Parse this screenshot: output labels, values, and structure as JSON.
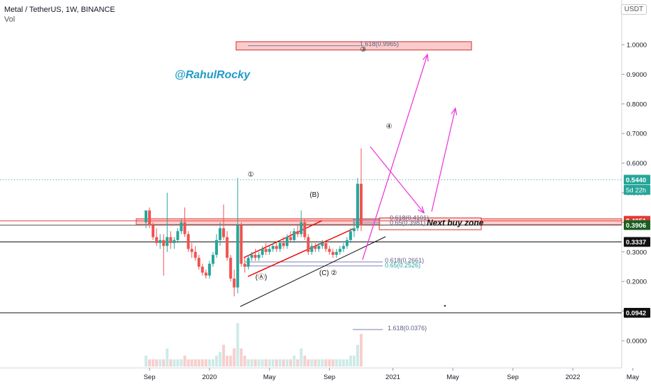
{
  "header": {
    "title": "Metal / TetherUS, 1W, BINANCE",
    "vol_label": "Vol"
  },
  "currency_badge": "USDT",
  "watermark": "@RahulRocky",
  "colors": {
    "up": "#26a69a",
    "down": "#ef5350",
    "magenta": "#ee3bde",
    "volume_up": "#cdebe8",
    "volume_down": "#f6cfce",
    "text": "#131722"
  },
  "chart_data": {
    "type": "candlestick",
    "symbol": "Metal / TetherUS",
    "interval": "1W",
    "exchange": "BINANCE",
    "ylim": [
      -0.08,
      1.1
    ],
    "y_ticks": [
      0.0,
      0.1,
      0.2,
      0.3,
      0.4,
      0.5,
      0.6,
      0.7,
      0.8,
      0.9,
      1.0
    ],
    "y_tick_labels": [
      "0.0000",
      "0.1000",
      "0.2000",
      "0.3000",
      "0.4000",
      "0.5000",
      "0.6000",
      "0.7000",
      "0.8000",
      "0.9000",
      "1.0000"
    ],
    "x_ticks": [
      "Sep",
      "2020",
      "May",
      "Sep",
      "2021",
      "May",
      "Sep",
      "2022",
      "May"
    ],
    "x_tick_index": [
      1,
      18,
      35,
      52,
      70,
      87,
      104,
      121,
      138
    ],
    "candles": [
      {
        "o": 0.4,
        "h": 0.44,
        "l": 0.38,
        "c": 0.44
      },
      {
        "o": 0.44,
        "h": 0.45,
        "l": 0.38,
        "c": 0.39
      },
      {
        "o": 0.39,
        "h": 0.4,
        "l": 0.34,
        "c": 0.35
      },
      {
        "o": 0.35,
        "h": 0.38,
        "l": 0.32,
        "c": 0.33
      },
      {
        "o": 0.33,
        "h": 0.36,
        "l": 0.31,
        "c": 0.34
      },
      {
        "o": 0.34,
        "h": 0.36,
        "l": 0.22,
        "c": 0.32
      },
      {
        "o": 0.32,
        "h": 0.5,
        "l": 0.3,
        "c": 0.35
      },
      {
        "o": 0.35,
        "h": 0.37,
        "l": 0.31,
        "c": 0.33
      },
      {
        "o": 0.33,
        "h": 0.35,
        "l": 0.31,
        "c": 0.34
      },
      {
        "o": 0.34,
        "h": 0.38,
        "l": 0.33,
        "c": 0.37
      },
      {
        "o": 0.37,
        "h": 0.41,
        "l": 0.36,
        "c": 0.4
      },
      {
        "o": 0.4,
        "h": 0.45,
        "l": 0.35,
        "c": 0.36
      },
      {
        "o": 0.36,
        "h": 0.37,
        "l": 0.3,
        "c": 0.31
      },
      {
        "o": 0.31,
        "h": 0.33,
        "l": 0.28,
        "c": 0.3
      },
      {
        "o": 0.3,
        "h": 0.32,
        "l": 0.27,
        "c": 0.28
      },
      {
        "o": 0.28,
        "h": 0.29,
        "l": 0.24,
        "c": 0.25
      },
      {
        "o": 0.25,
        "h": 0.26,
        "l": 0.22,
        "c": 0.23
      },
      {
        "o": 0.23,
        "h": 0.24,
        "l": 0.21,
        "c": 0.22
      },
      {
        "o": 0.22,
        "h": 0.27,
        "l": 0.21,
        "c": 0.26
      },
      {
        "o": 0.26,
        "h": 0.3,
        "l": 0.25,
        "c": 0.29
      },
      {
        "o": 0.29,
        "h": 0.36,
        "l": 0.28,
        "c": 0.34
      },
      {
        "o": 0.34,
        "h": 0.4,
        "l": 0.32,
        "c": 0.38
      },
      {
        "o": 0.38,
        "h": 0.46,
        "l": 0.34,
        "c": 0.35
      },
      {
        "o": 0.35,
        "h": 0.37,
        "l": 0.27,
        "c": 0.28
      },
      {
        "o": 0.28,
        "h": 0.29,
        "l": 0.2,
        "c": 0.21
      },
      {
        "o": 0.21,
        "h": 0.24,
        "l": 0.15,
        "c": 0.18
      },
      {
        "o": 0.18,
        "h": 0.55,
        "l": 0.16,
        "c": 0.39
      },
      {
        "o": 0.39,
        "h": 0.4,
        "l": 0.25,
        "c": 0.26
      },
      {
        "o": 0.26,
        "h": 0.28,
        "l": 0.23,
        "c": 0.25
      },
      {
        "o": 0.25,
        "h": 0.29,
        "l": 0.24,
        "c": 0.28
      },
      {
        "o": 0.28,
        "h": 0.3,
        "l": 0.27,
        "c": 0.29
      },
      {
        "o": 0.29,
        "h": 0.31,
        "l": 0.27,
        "c": 0.28
      },
      {
        "o": 0.28,
        "h": 0.3,
        "l": 0.27,
        "c": 0.29
      },
      {
        "o": 0.29,
        "h": 0.32,
        "l": 0.28,
        "c": 0.31
      },
      {
        "o": 0.31,
        "h": 0.33,
        "l": 0.29,
        "c": 0.3
      },
      {
        "o": 0.3,
        "h": 0.32,
        "l": 0.29,
        "c": 0.31
      },
      {
        "o": 0.31,
        "h": 0.33,
        "l": 0.3,
        "c": 0.32
      },
      {
        "o": 0.32,
        "h": 0.33,
        "l": 0.3,
        "c": 0.31
      },
      {
        "o": 0.31,
        "h": 0.34,
        "l": 0.3,
        "c": 0.33
      },
      {
        "o": 0.33,
        "h": 0.35,
        "l": 0.31,
        "c": 0.32
      },
      {
        "o": 0.32,
        "h": 0.36,
        "l": 0.31,
        "c": 0.35
      },
      {
        "o": 0.35,
        "h": 0.37,
        "l": 0.33,
        "c": 0.34
      },
      {
        "o": 0.34,
        "h": 0.38,
        "l": 0.33,
        "c": 0.37
      },
      {
        "o": 0.37,
        "h": 0.39,
        "l": 0.35,
        "c": 0.36
      },
      {
        "o": 0.36,
        "h": 0.44,
        "l": 0.35,
        "c": 0.4
      },
      {
        "o": 0.4,
        "h": 0.41,
        "l": 0.34,
        "c": 0.35
      },
      {
        "o": 0.35,
        "h": 0.36,
        "l": 0.29,
        "c": 0.3
      },
      {
        "o": 0.3,
        "h": 0.33,
        "l": 0.29,
        "c": 0.32
      },
      {
        "o": 0.32,
        "h": 0.33,
        "l": 0.3,
        "c": 0.31
      },
      {
        "o": 0.31,
        "h": 0.33,
        "l": 0.3,
        "c": 0.32
      },
      {
        "o": 0.32,
        "h": 0.34,
        "l": 0.31,
        "c": 0.33
      },
      {
        "o": 0.33,
        "h": 0.34,
        "l": 0.3,
        "c": 0.31
      },
      {
        "o": 0.31,
        "h": 0.32,
        "l": 0.29,
        "c": 0.3
      },
      {
        "o": 0.3,
        "h": 0.31,
        "l": 0.28,
        "c": 0.29
      },
      {
        "o": 0.29,
        "h": 0.31,
        "l": 0.28,
        "c": 0.3
      },
      {
        "o": 0.3,
        "h": 0.32,
        "l": 0.29,
        "c": 0.31
      },
      {
        "o": 0.31,
        "h": 0.33,
        "l": 0.3,
        "c": 0.32
      },
      {
        "o": 0.32,
        "h": 0.35,
        "l": 0.31,
        "c": 0.34
      },
      {
        "o": 0.34,
        "h": 0.38,
        "l": 0.33,
        "c": 0.37
      },
      {
        "o": 0.37,
        "h": 0.41,
        "l": 0.35,
        "c": 0.38
      },
      {
        "o": 0.38,
        "h": 0.55,
        "l": 0.37,
        "c": 0.53
      },
      {
        "o": 0.53,
        "h": 0.65,
        "l": 0.37,
        "c": 0.39
      }
    ],
    "volume": [
      0.03,
      0.02,
      0.02,
      0.02,
      0.02,
      0.02,
      0.05,
      0.02,
      0.02,
      0.02,
      0.02,
      0.03,
      0.02,
      0.02,
      0.02,
      0.02,
      0.02,
      0.02,
      0.02,
      0.02,
      0.03,
      0.04,
      0.06,
      0.03,
      0.03,
      0.05,
      0.12,
      0.05,
      0.03,
      0.02,
      0.02,
      0.02,
      0.02,
      0.02,
      0.02,
      0.02,
      0.02,
      0.02,
      0.02,
      0.02,
      0.02,
      0.02,
      0.03,
      0.02,
      0.05,
      0.03,
      0.02,
      0.02,
      0.02,
      0.02,
      0.02,
      0.02,
      0.02,
      0.02,
      0.02,
      0.02,
      0.02,
      0.02,
      0.03,
      0.03,
      0.06,
      0.09
    ],
    "horizontal_levels": [
      {
        "value": 0.4051,
        "label": "0.4051",
        "style": "red"
      },
      {
        "value": 0.3906,
        "label": "0.3906",
        "style": "dark"
      },
      {
        "value": 0.3337,
        "label": "0.3337",
        "style": "black"
      },
      {
        "value": 0.0942,
        "label": "0.0942",
        "style": "black"
      },
      {
        "value": 0.544,
        "label": "0.5440",
        "style": "teal"
      }
    ],
    "countdown_label": "5d 22h",
    "fib_labels": [
      {
        "text": "1.618(0.9965)",
        "value": 0.9965
      },
      {
        "text": "0.618(0.4101)",
        "value": 0.4101
      },
      {
        "text": "0.65(0.3981)",
        "value": 0.3981
      },
      {
        "text": "0.618(0.2661)",
        "value": 0.2661
      },
      {
        "text": "0.65(0.2526)",
        "value": 0.2526
      },
      {
        "text": "1.618(0.0376)",
        "value": 0.0376
      }
    ],
    "wave_labels": [
      "①",
      "(Ⓐ)",
      "(B)",
      "(C)",
      "②",
      "③",
      "④"
    ],
    "zone_label": "Next buy zone"
  }
}
